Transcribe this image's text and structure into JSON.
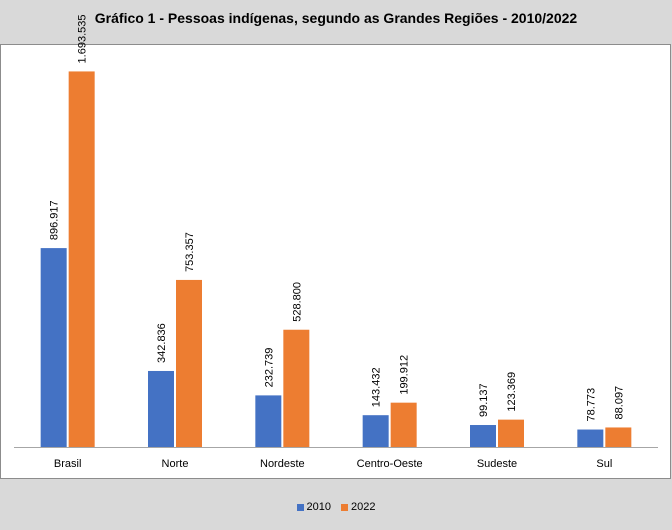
{
  "chart_data": {
    "type": "bar",
    "title": "Gráfico 1 - Pessoas indígenas, segundo as Grandes Regiões - 2010/2022",
    "categories": [
      "Brasil",
      "Norte",
      "Nordeste",
      "Centro-Oeste",
      "Sudeste",
      "Sul"
    ],
    "series": [
      {
        "name": "2010",
        "color": "#4472c4",
        "values": [
          896917,
          342836,
          232739,
          143432,
          99137,
          78773
        ],
        "labels": [
          "896.917",
          "342.836",
          "232.739",
          "143.432",
          "99.137",
          "78.773"
        ]
      },
      {
        "name": "2022",
        "color": "#ed7d31",
        "values": [
          1693535,
          753357,
          528800,
          199912,
          123369,
          88097
        ],
        "labels": [
          "1.693.535",
          "753.357",
          "528.800",
          "199.912",
          "123.369",
          "88.097"
        ]
      }
    ],
    "ylim": [
      0,
      1700000
    ],
    "grid": false,
    "legend_position": "bottom"
  }
}
